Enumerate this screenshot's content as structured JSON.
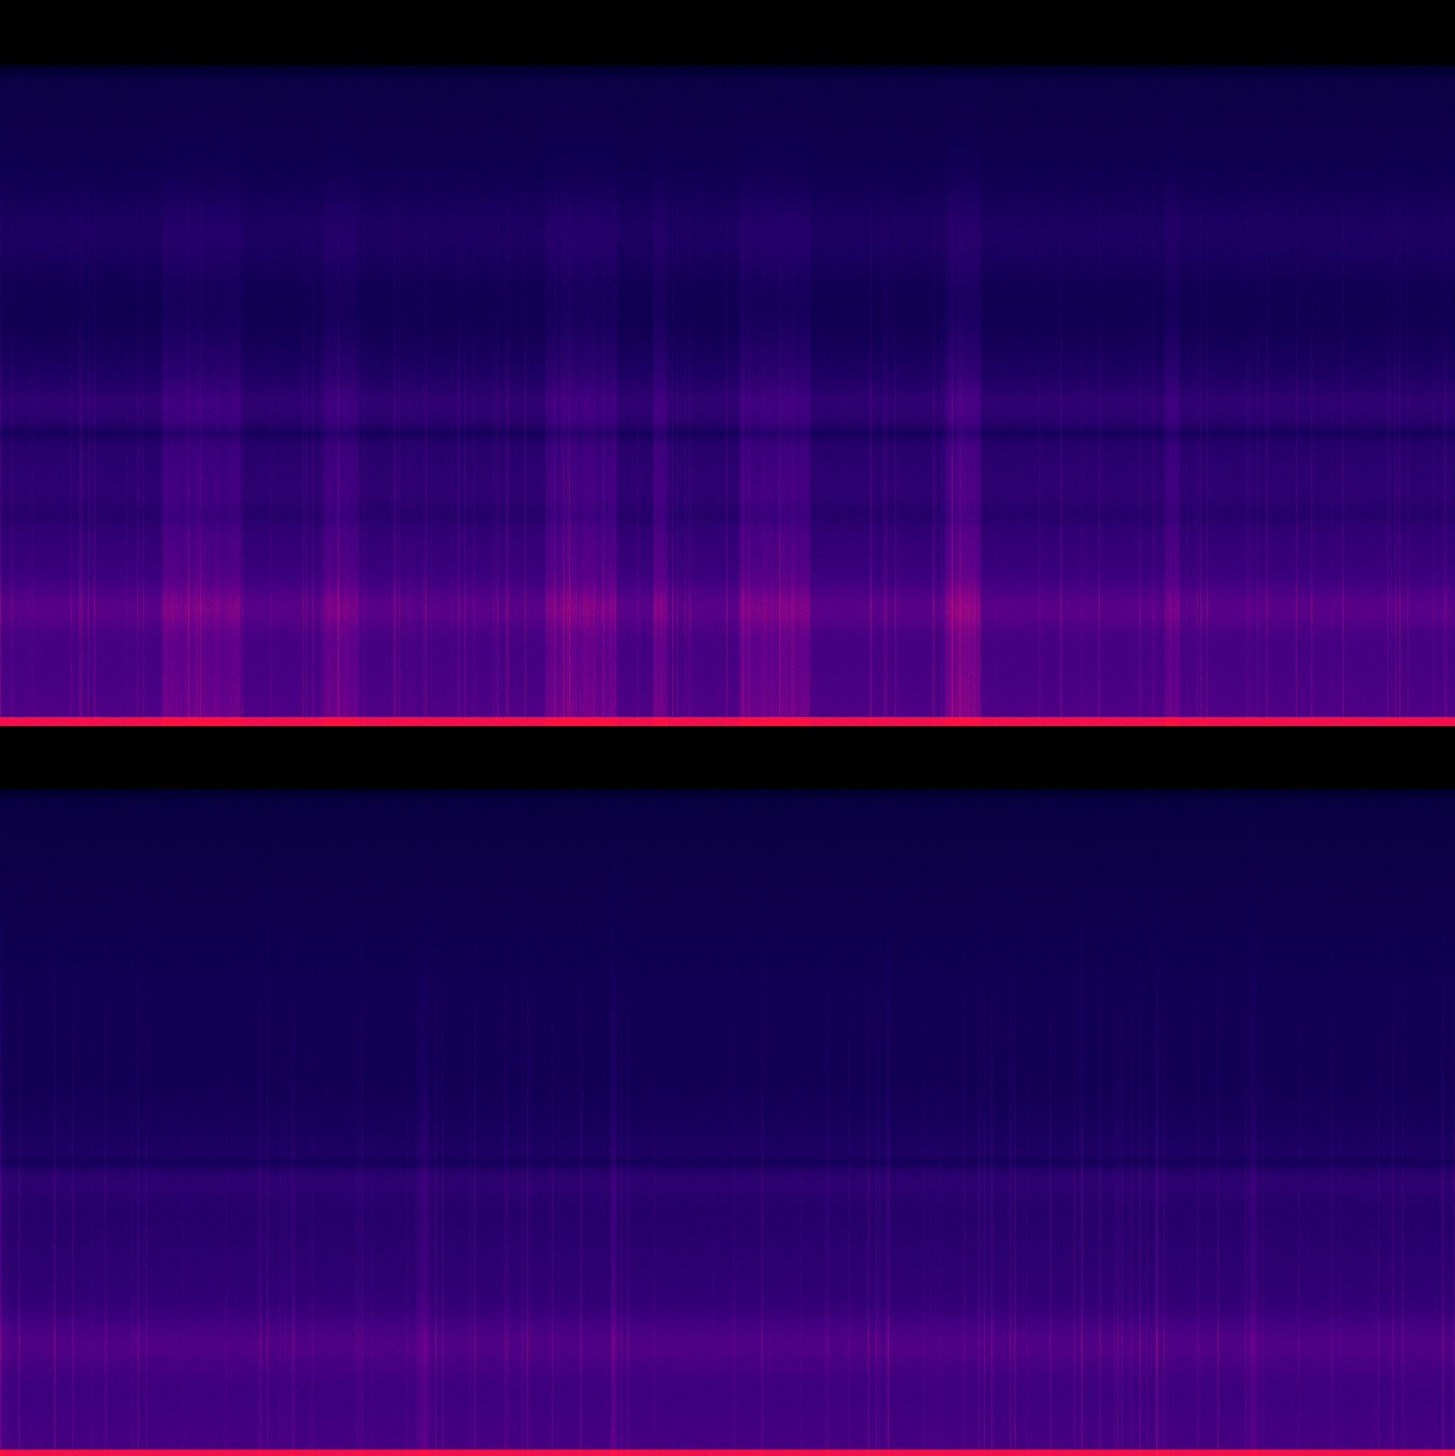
{
  "colors": {
    "background": "#000000",
    "low": "#000033",
    "mid_low": "#1a0060",
    "mid": "#4a0080",
    "mid_high": "#7a0090",
    "high": "#c0107a",
    "peak": "#ff1040"
  }
}
